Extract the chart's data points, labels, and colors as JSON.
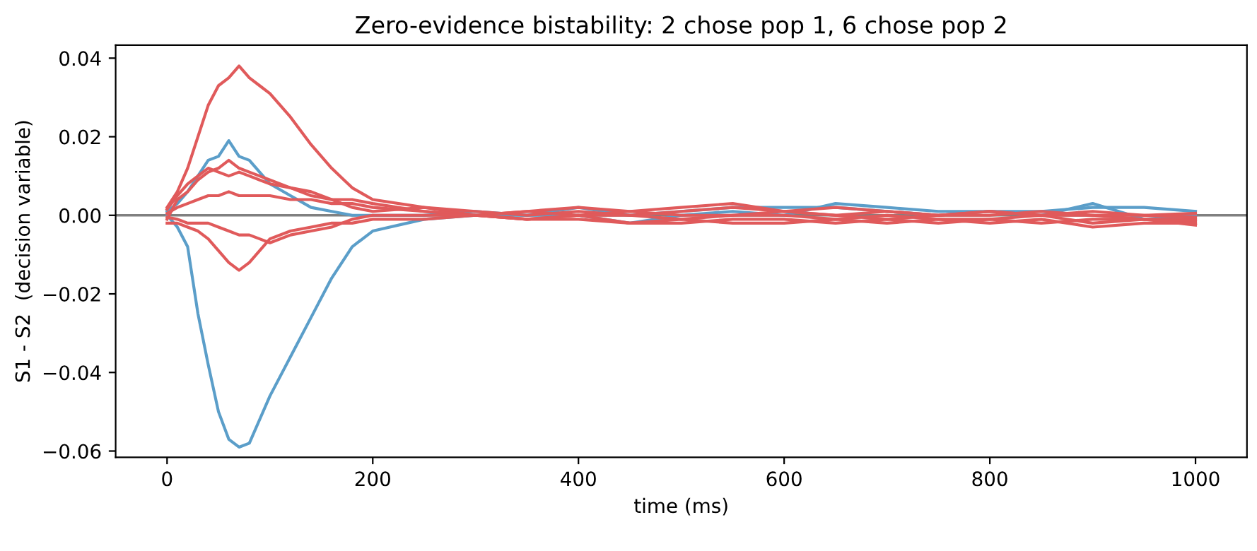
{
  "chart_data": {
    "type": "line",
    "title": "Zero-evidence bistability: 2 chose pop 1, 6 chose pop 2",
    "xlabel": "time (ms)",
    "ylabel": "S1 - S2  (decision variable)",
    "x": [
      0,
      10,
      20,
      30,
      40,
      50,
      60,
      70,
      80,
      90,
      100,
      120,
      140,
      160,
      180,
      200,
      250,
      300,
      350,
      400,
      450,
      500,
      550,
      600,
      650,
      700,
      750,
      800,
      850,
      900,
      950,
      1000
    ],
    "series": [
      {
        "color": "#5b9ec9",
        "values": [
          0,
          -0.003,
          -0.008,
          -0.025,
          -0.038,
          -0.05,
          -0.057,
          -0.059,
          -0.058,
          -0.052,
          -0.046,
          -0.036,
          -0.026,
          -0.016,
          -0.008,
          -0.004,
          -0.001,
          0.0,
          0.0,
          0.002,
          0.0,
          0.001,
          0.002,
          0.002,
          0.002,
          0.001,
          0.0,
          0.001,
          0.001,
          0.002,
          0.002,
          0.001
        ]
      },
      {
        "color": "#5b9ec9",
        "values": [
          0.001,
          0.003,
          0.006,
          0.01,
          0.014,
          0.015,
          0.019,
          0.015,
          0.014,
          0.011,
          0.008,
          0.005,
          0.002,
          0.001,
          0.0,
          0.0,
          0.0,
          0.001,
          0.0,
          0.0,
          -0.002,
          0.0,
          0.001,
          0.0,
          0.003,
          0.002,
          0.001,
          0.001,
          0.0,
          0.003,
          -0.001,
          0.0
        ]
      },
      {
        "color": "#e05a5b",
        "values": [
          0.002,
          0.006,
          0.012,
          0.02,
          0.028,
          0.033,
          0.035,
          0.038,
          0.035,
          0.033,
          0.031,
          0.025,
          0.018,
          0.012,
          0.007,
          0.004,
          0.002,
          0.001,
          0.0,
          0.001,
          0.0,
          0.001,
          0.002,
          0.001,
          0.0,
          0.001,
          0.0,
          0.001,
          0.0,
          0.0,
          -0.001,
          -0.001
        ]
      },
      {
        "color": "#e05a5b",
        "values": [
          -0.001,
          0.004,
          0.006,
          0.009,
          0.011,
          0.012,
          0.014,
          0.012,
          0.011,
          0.01,
          0.009,
          0.007,
          0.005,
          0.004,
          0.004,
          0.003,
          0.001,
          0.0,
          0.001,
          0.002,
          0.001,
          0.002,
          0.003,
          0.001,
          0.002,
          0.001,
          0.0,
          0.001,
          0.0,
          0.001,
          0.0,
          0.0005
        ]
      },
      {
        "color": "#e05a5b",
        "values": [
          0.0015,
          0.005,
          0.008,
          0.01,
          0.012,
          0.011,
          0.01,
          0.011,
          0.01,
          0.009,
          0.008,
          0.007,
          0.006,
          0.004,
          0.002,
          0.001,
          0.002,
          0.0,
          -0.001,
          0.0,
          0.001,
          0.0,
          0.0,
          0.001,
          0.0,
          -0.001,
          0.0,
          0.0,
          0.001,
          0.0,
          0.0,
          -0.0005
        ]
      },
      {
        "color": "#e05a5b",
        "values": [
          0.0005,
          0.002,
          0.003,
          0.004,
          0.005,
          0.005,
          0.006,
          0.005,
          0.005,
          0.005,
          0.005,
          0.004,
          0.004,
          0.003,
          0.003,
          0.002,
          0.001,
          0.0,
          0.001,
          0.0,
          0.0,
          -0.001,
          0.0,
          0.0,
          -0.001,
          0.0,
          -0.001,
          -0.001,
          0.0,
          -0.002,
          -0.001,
          -0.0015
        ]
      },
      {
        "color": "#e05a5b",
        "values": [
          -0.002,
          -0.002,
          -0.003,
          -0.004,
          -0.006,
          -0.009,
          -0.012,
          -0.014,
          -0.012,
          -0.009,
          -0.006,
          -0.004,
          -0.003,
          -0.002,
          -0.002,
          -0.001,
          -0.001,
          0.0,
          -0.001,
          0.0,
          -0.002,
          -0.001,
          -0.002,
          -0.002,
          -0.001,
          -0.002,
          -0.001,
          -0.002,
          -0.001,
          -0.003,
          -0.002,
          -0.002
        ]
      },
      {
        "color": "#e05a5b",
        "values": [
          -0.0005,
          -0.001,
          -0.002,
          -0.002,
          -0.002,
          -0.003,
          -0.004,
          -0.005,
          -0.005,
          -0.006,
          -0.007,
          -0.005,
          -0.004,
          -0.003,
          -0.001,
          0.0,
          0.0,
          0.0,
          -0.001,
          -0.001,
          -0.002,
          -0.002,
          -0.001,
          -0.001,
          -0.002,
          -0.001,
          -0.002,
          -0.001,
          -0.002,
          -0.001,
          -0.001,
          -0.0025
        ]
      }
    ],
    "xlim": [
      -50,
      1050
    ],
    "ylim": [
      -0.0616,
      0.0433
    ],
    "xticks": [
      0,
      200,
      400,
      600,
      800,
      1000
    ],
    "yticks": [
      {
        "value": -0.06,
        "label": "−0.06"
      },
      {
        "value": -0.04,
        "label": "−0.04"
      },
      {
        "value": -0.02,
        "label": "−0.02"
      },
      {
        "value": 0,
        "label": "0.00"
      },
      {
        "value": 0.02,
        "label": "0.02"
      },
      {
        "value": 0.04,
        "label": "0.04"
      }
    ],
    "ref_lines": [
      {
        "axis": "y",
        "value": 0,
        "color": "#808080"
      }
    ],
    "grid": false,
    "legend": false,
    "marker": "none",
    "line_style": "solid"
  }
}
